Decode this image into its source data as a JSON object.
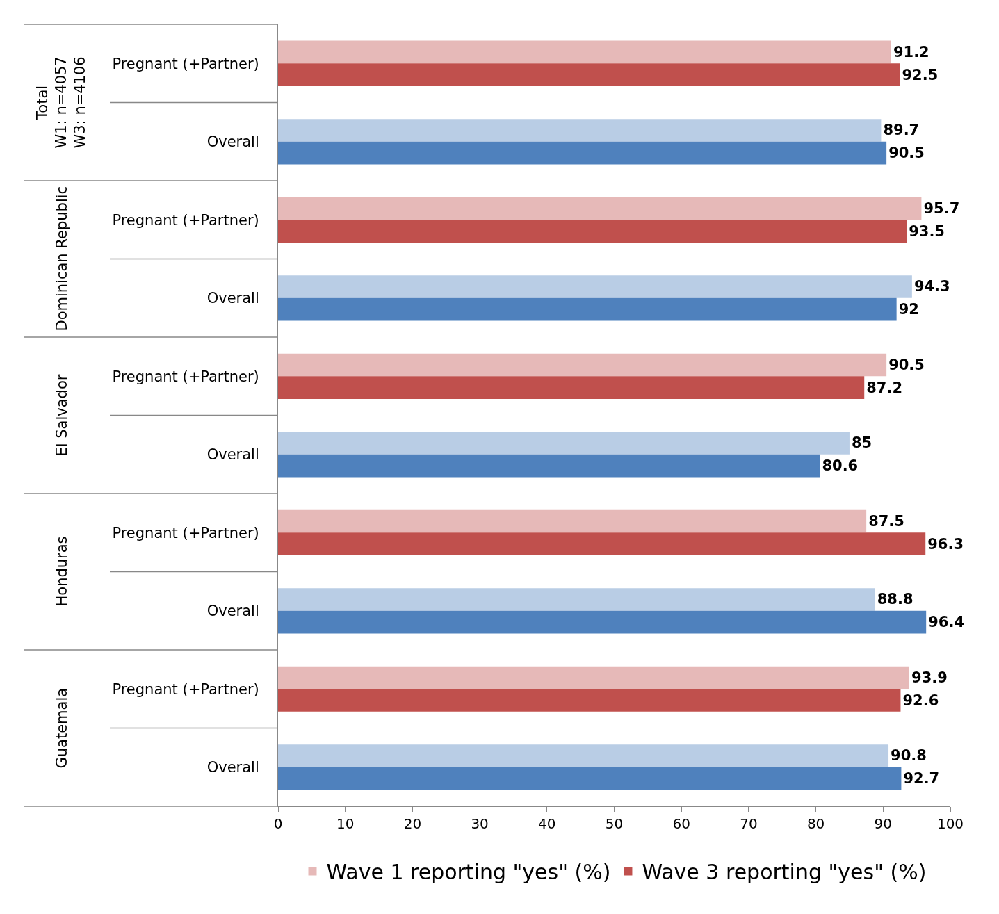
{
  "chart_data": {
    "type": "bar",
    "orientation": "horizontal",
    "categories": [
      "Pregnant (+Partner)",
      "Overall",
      "Pregnant (+Partner)",
      "Overall",
      "Pregnant (+Partner)",
      "Overall",
      "Pregnant (+Partner)",
      "Overall",
      "Pregnant (+Partner)",
      "Overall"
    ],
    "series": [
      {
        "name": "Wave 1 reporting \"yes\" (%)",
        "colors": [
          "#e6b9b8",
          "#b9cde5",
          "#e6b9b8",
          "#b9cde5",
          "#e6b9b8",
          "#b9cde5",
          "#e6b9b8",
          "#b9cde5",
          "#e6b9b8",
          "#b9cde5"
        ],
        "values": [
          91.2,
          89.7,
          95.7,
          94.3,
          90.5,
          85,
          87.5,
          88.8,
          93.9,
          90.8
        ]
      },
      {
        "name": "Wave 3 reporting \"yes\" (%)",
        "colors": [
          "#c0504d",
          "#4f81bd",
          "#c0504d",
          "#4f81bd",
          "#c0504d",
          "#4f81bd",
          "#c0504d",
          "#4f81bd",
          "#c0504d",
          "#4f81bd"
        ],
        "values": [
          92.5,
          90.5,
          93.5,
          92,
          87.2,
          80.6,
          96.3,
          96.4,
          92.6,
          92.7
        ]
      }
    ],
    "annotations": [
      "Total\nW1: n=4057\nW3: n=4106",
      "Dominican Republic",
      "El Salvador",
      "Honduras",
      "Guatemala"
    ],
    "xlim": [
      0,
      100
    ],
    "xticks": [
      0,
      10,
      20,
      30,
      40,
      50,
      60,
      70,
      80,
      90,
      100
    ],
    "data_labels": true,
    "legend": "bottom"
  }
}
